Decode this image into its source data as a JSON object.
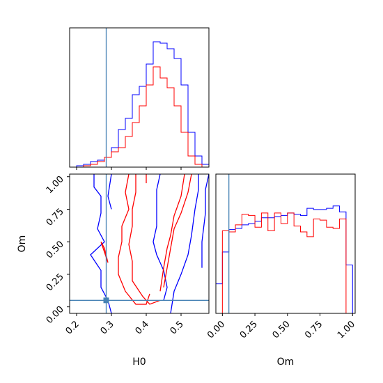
{
  "chart_data": [
    {
      "type": "histogram",
      "panel": "H0 marginal",
      "xlim": [
        0.18,
        0.58
      ],
      "truth_marker": 0.285,
      "series": [
        {
          "color": "#0000ff",
          "bins": [
            0.18,
            0.2,
            0.22,
            0.24,
            0.26,
            0.28,
            0.3,
            0.32,
            0.34,
            0.36,
            0.38,
            0.4,
            0.42,
            0.44,
            0.46,
            0.48,
            0.5,
            0.52,
            0.54,
            0.56,
            0.58
          ],
          "counts": [
            0,
            1,
            2,
            4,
            5,
            7,
            14,
            27,
            35,
            52,
            58,
            74,
            90,
            89,
            85,
            78,
            59,
            25,
            8,
            2
          ]
        },
        {
          "color": "#ff0000",
          "bins": [
            0.18,
            0.2,
            0.22,
            0.24,
            0.26,
            0.28,
            0.3,
            0.32,
            0.34,
            0.36,
            0.38,
            0.4,
            0.42,
            0.44,
            0.46,
            0.48,
            0.5,
            0.52,
            0.54,
            0.56,
            0.58
          ],
          "counts": [
            0,
            0,
            1,
            2,
            4,
            7,
            11,
            14,
            22,
            32,
            44,
            59,
            72,
            64,
            57,
            44,
            25,
            8,
            2,
            0
          ]
        }
      ]
    },
    {
      "type": "contour",
      "panel": "H0 vs Om",
      "xlabel": "H0",
      "ylabel": "Om",
      "xlim": [
        0.18,
        0.58
      ],
      "ylim": [
        -0.05,
        1.02
      ],
      "xticks": [
        "0.2",
        "0.3",
        "0.4",
        "0.5"
      ],
      "yticks": [
        "0.00",
        "0.25",
        "0.50",
        "0.75",
        "1.00"
      ],
      "truth": [
        0.285,
        0.05
      ],
      "series": [
        {
          "color": "#0000ff",
          "contours": [
            [
              [
                0.25,
                1.02
              ],
              [
                0.25,
                0.92
              ],
              [
                0.27,
                0.85
              ],
              [
                0.27,
                0.72
              ],
              [
                0.26,
                0.6
              ],
              [
                0.28,
                0.5
              ],
              [
                0.24,
                0.4
              ],
              [
                0.27,
                0.28
              ],
              [
                0.27,
                0.15
              ],
              [
                0.29,
                0.05
              ],
              [
                0.3,
                -0.05
              ]
            ],
            [
              [
                0.55,
                1.02
              ],
              [
                0.55,
                0.9
              ],
              [
                0.54,
                0.75
              ],
              [
                0.53,
                0.55
              ],
              [
                0.52,
                0.4
              ],
              [
                0.5,
                0.25
              ],
              [
                0.48,
                0.12
              ],
              [
                0.47,
                -0.05
              ]
            ],
            [
              [
                0.3,
                1.02
              ],
              [
                0.29,
                0.85
              ],
              [
                0.3,
                0.75
              ]
            ],
            [
              [
                0.44,
                1.02
              ],
              [
                0.43,
                0.9
              ],
              [
                0.43,
                0.75
              ],
              [
                0.43,
                0.62
              ],
              [
                0.42,
                0.5
              ],
              [
                0.43,
                0.4
              ],
              [
                0.45,
                0.28
              ],
              [
                0.46,
                0.15
              ],
              [
                0.45,
                0.05
              ]
            ],
            [
              [
                0.58,
                1.02
              ],
              [
                0.57,
                0.9
              ],
              [
                0.57,
                0.72
              ],
              [
                0.56,
                0.5
              ],
              [
                0.56,
                0.3
              ]
            ]
          ]
        },
        {
          "color": "#ff0000",
          "contours": [
            [
              [
                0.35,
                1.02
              ],
              [
                0.34,
                0.88
              ],
              [
                0.35,
                0.75
              ],
              [
                0.33,
                0.62
              ],
              [
                0.33,
                0.5
              ],
              [
                0.32,
                0.38
              ],
              [
                0.32,
                0.25
              ],
              [
                0.34,
                0.12
              ],
              [
                0.37,
                0.02
              ],
              [
                0.4,
                0.02
              ],
              [
                0.41,
                0.1
              ]
            ],
            [
              [
                0.37,
                1.02
              ],
              [
                0.37,
                0.88
              ],
              [
                0.36,
                0.75
              ],
              [
                0.36,
                0.62
              ],
              [
                0.35,
                0.48
              ],
              [
                0.36,
                0.35
              ],
              [
                0.36,
                0.2
              ],
              [
                0.39,
                0.08
              ],
              [
                0.41,
                0.02
              ],
              [
                0.44,
                0.05
              ]
            ],
            [
              [
                0.51,
                1.02
              ],
              [
                0.5,
                0.85
              ],
              [
                0.48,
                0.7
              ],
              [
                0.47,
                0.55
              ],
              [
                0.46,
                0.45
              ],
              [
                0.45,
                0.3
              ],
              [
                0.44,
                0.12
              ]
            ],
            [
              [
                0.53,
                1.02
              ],
              [
                0.52,
                0.88
              ],
              [
                0.5,
                0.72
              ],
              [
                0.48,
                0.6
              ],
              [
                0.47,
                0.45
              ],
              [
                0.46,
                0.3
              ],
              [
                0.45,
                0.15
              ]
            ],
            [
              [
                0.27,
                0.5
              ],
              [
                0.28,
                0.42
              ],
              [
                0.29,
                0.34
              ],
              [
                0.28,
                0.45
              ],
              [
                0.27,
                0.5
              ]
            ],
            [
              [
                0.4,
                1.02
              ],
              [
                0.4,
                0.95
              ]
            ]
          ]
        }
      ]
    },
    {
      "type": "histogram",
      "panel": "Om marginal",
      "xlabel": "Om",
      "xlim": [
        -0.05,
        1.02
      ],
      "xticks": [
        "0.00",
        "0.25",
        "0.50",
        "0.75",
        "1.00"
      ],
      "truth_marker": 0.05,
      "series": [
        {
          "color": "#0000ff",
          "bins": [
            -0.05,
            0.0,
            0.05,
            0.1,
            0.15,
            0.2,
            0.25,
            0.3,
            0.35,
            0.4,
            0.45,
            0.5,
            0.55,
            0.6,
            0.65,
            0.7,
            0.75,
            0.8,
            0.85,
            0.9,
            0.95,
            1.0
          ],
          "counts": [
            25,
            52,
            71,
            72,
            75,
            76,
            78,
            81,
            81,
            82,
            83,
            85,
            84,
            83,
            89,
            88,
            88,
            89,
            91,
            86,
            41
          ]
        },
        {
          "color": "#ff0000",
          "bins": [
            -0.05,
            0.0,
            0.05,
            0.1,
            0.15,
            0.2,
            0.25,
            0.3,
            0.35,
            0.4,
            0.45,
            0.5,
            0.55,
            0.6,
            0.65,
            0.7,
            0.75,
            0.8,
            0.85,
            0.9,
            0.95,
            1.0
          ],
          "counts": [
            0,
            70,
            69,
            75,
            84,
            83,
            73,
            85,
            70,
            85,
            76,
            85,
            74,
            69,
            65,
            80,
            79,
            73,
            72,
            80,
            0
          ]
        }
      ]
    }
  ]
}
